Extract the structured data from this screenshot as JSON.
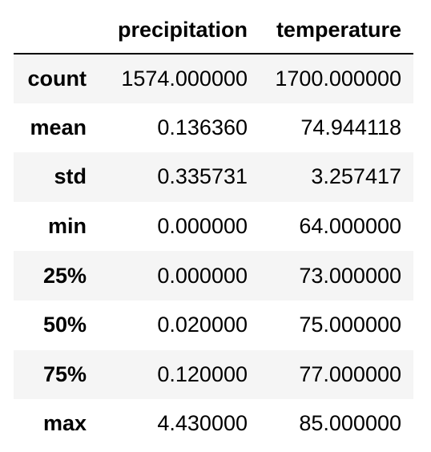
{
  "table": {
    "columns": [
      "precipitation",
      "temperature"
    ],
    "rows": [
      {
        "stat": "count",
        "precipitation": "1574.000000",
        "temperature": "1700.000000"
      },
      {
        "stat": "mean",
        "precipitation": "0.136360",
        "temperature": "74.944118"
      },
      {
        "stat": "std",
        "precipitation": "0.335731",
        "temperature": "3.257417"
      },
      {
        "stat": "min",
        "precipitation": "0.000000",
        "temperature": "64.000000"
      },
      {
        "stat": "25%",
        "precipitation": "0.000000",
        "temperature": "73.000000"
      },
      {
        "stat": "50%",
        "precipitation": "0.020000",
        "temperature": "75.000000"
      },
      {
        "stat": "75%",
        "precipitation": "0.120000",
        "temperature": "77.000000"
      },
      {
        "stat": "max",
        "precipitation": "4.430000",
        "temperature": "85.000000"
      }
    ]
  },
  "colors": {
    "stripe": "#f5f5f5",
    "header_rule": "#000000"
  }
}
